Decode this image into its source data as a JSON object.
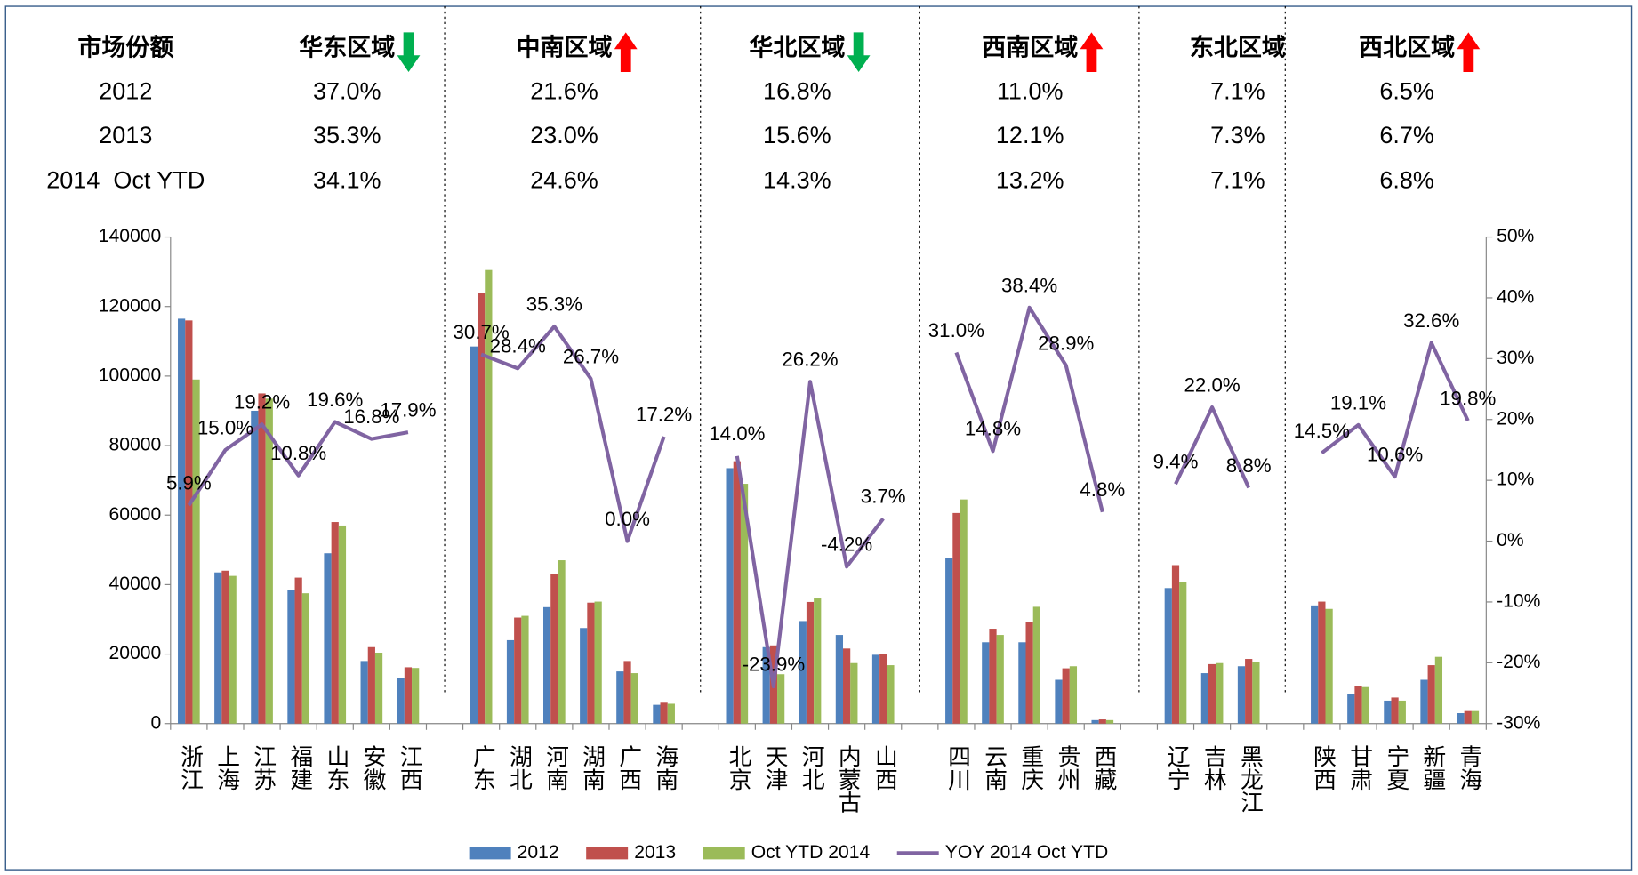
{
  "share_table": {
    "header": [
      "市场份额",
      "华东区域",
      "中南区域",
      "华北区域",
      "西南区域",
      "东北区域",
      "西北区域"
    ],
    "trend": [
      null,
      "down",
      "up",
      "down",
      "up",
      null,
      "up"
    ],
    "trend_colors": {
      "up": "#ff0000",
      "down": "#00b050"
    },
    "rows": [
      {
        "label": "2012",
        "values": [
          "37.0%",
          "21.6%",
          "16.8%",
          "11.0%",
          "7.1%",
          "6.5%"
        ]
      },
      {
        "label": "2013",
        "values": [
          "35.3%",
          "23.0%",
          "15.6%",
          "12.1%",
          "7.3%",
          "6.7%"
        ]
      },
      {
        "label": "2014  Oct YTD",
        "values": [
          "34.1%",
          "24.6%",
          "14.3%",
          "13.2%",
          "7.1%",
          "6.8%"
        ]
      }
    ]
  },
  "chart_data": {
    "type": "bar_line",
    "categories": [
      "浙江",
      "上海",
      "江苏",
      "福建",
      "山东",
      "安徽",
      "江西",
      null,
      "广东",
      "湖北",
      "河南",
      "湖南",
      "广西",
      "海南",
      null,
      "北京",
      "天津",
      "河北",
      "内蒙古",
      "山西",
      null,
      "四川",
      "云南",
      "重庆",
      "贵州",
      "西藏",
      null,
      "辽宁",
      "吉林",
      "黑龙江",
      null,
      "陕西",
      "甘肃",
      "宁夏",
      "新疆",
      "青海"
    ],
    "series": [
      {
        "name": "2012",
        "color": "#4f81bd",
        "type": "bar",
        "values": [
          116500,
          43500,
          90000,
          38500,
          49000,
          18000,
          13000,
          null,
          108500,
          24000,
          33500,
          27500,
          15000,
          5400,
          null,
          73500,
          22000,
          29500,
          25500,
          19800,
          null,
          47700,
          23400,
          23400,
          12600,
          1000,
          null,
          39000,
          14500,
          16500,
          null,
          34000,
          8400,
          6600,
          12600,
          3000
        ]
      },
      {
        "name": "2013",
        "color": "#c0504d",
        "type": "bar",
        "values": [
          116000,
          44000,
          95000,
          42000,
          58000,
          22000,
          16200,
          null,
          124000,
          30500,
          43000,
          34800,
          18000,
          6000,
          null,
          75500,
          22500,
          35000,
          21600,
          20100,
          null,
          60600,
          27300,
          29100,
          15900,
          1200,
          null,
          45600,
          17100,
          18600,
          null,
          35100,
          10800,
          7500,
          16800,
          3600
        ]
      },
      {
        "name": "Oct YTD 2014",
        "color": "#9bbb59",
        "type": "bar",
        "values": [
          99000,
          42500,
          93500,
          37500,
          57000,
          20400,
          16000,
          null,
          130500,
          31000,
          47000,
          35100,
          14500,
          5700,
          null,
          69000,
          14200,
          36000,
          17400,
          16800,
          null,
          64500,
          25500,
          33600,
          16500,
          1000,
          null,
          40800,
          17400,
          17700,
          null,
          33000,
          10500,
          6600,
          19200,
          3600
        ]
      },
      {
        "name": "YOY 2014 Oct YTD",
        "color": "#8064a2",
        "type": "line",
        "axis": "y2",
        "values": [
          5.9,
          15.0,
          19.2,
          10.8,
          19.6,
          16.8,
          17.9,
          null,
          30.7,
          28.4,
          35.3,
          26.7,
          0.0,
          17.2,
          null,
          14.0,
          -23.9,
          26.2,
          -4.2,
          3.7,
          null,
          31.0,
          14.8,
          38.4,
          28.9,
          4.8,
          null,
          9.4,
          22.0,
          8.8,
          null,
          14.5,
          19.1,
          10.6,
          32.6,
          19.8
        ],
        "value_labels": [
          "5.9%",
          "15.0%",
          "19.2%",
          "10.8%",
          "19.6%",
          "16.8%",
          "17.9%",
          null,
          "30.7%",
          "28.4%",
          "35.3%",
          "26.7%",
          "0.0%",
          "17.2%",
          null,
          "14.0%",
          "-23.9%",
          "26.2%",
          "-4.2%",
          "3.7%",
          null,
          "31.0%",
          "14.8%",
          "38.4%",
          "28.9%",
          "4.8%",
          null,
          "9.4%",
          "22.0%",
          "8.8%",
          null,
          "14.5%",
          "19.1%",
          "10.6%",
          "32.6%",
          "19.8%"
        ]
      }
    ],
    "ylim": [
      0,
      140000
    ],
    "yticks": [
      0,
      20000,
      40000,
      60000,
      80000,
      100000,
      120000,
      140000
    ],
    "y2lim": [
      -30,
      50
    ],
    "y2ticks": [
      {
        "value": -30,
        "label": "-30%"
      },
      {
        "value": -20,
        "label": "-20%"
      },
      {
        "value": -10,
        "label": "-10%"
      },
      {
        "value": 0,
        "label": "0%"
      },
      {
        "value": 10,
        "label": "10%"
      },
      {
        "value": 20,
        "label": "20%"
      },
      {
        "value": 30,
        "label": "30%"
      },
      {
        "value": 40,
        "label": "40%"
      },
      {
        "value": 50,
        "label": "50%"
      }
    ],
    "grid": false,
    "legend": "bottom"
  }
}
